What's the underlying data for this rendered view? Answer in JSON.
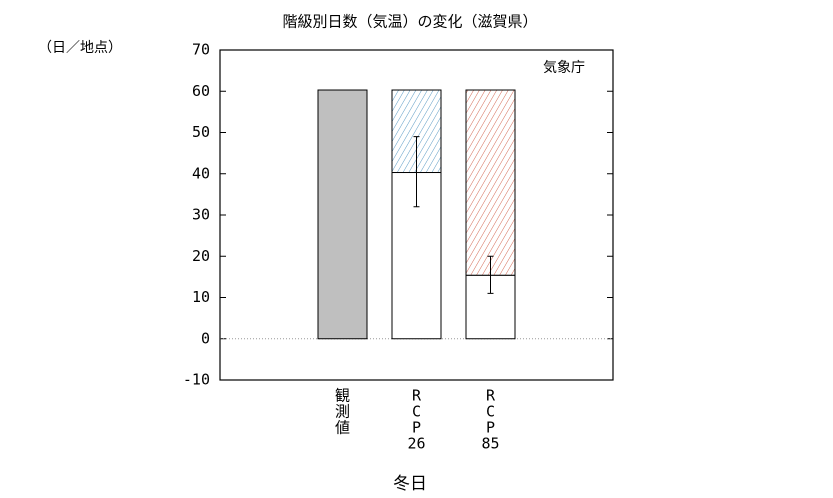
{
  "chart_data": {
    "type": "bar",
    "title": "階級別日数（気温）の変化（滋賀県）",
    "ylabel": "（日／地点）",
    "source": "気象庁",
    "xlabel": "冬日",
    "categories": [
      [
        "観",
        "測",
        "値"
      ],
      [
        "R",
        "C",
        "P",
        "26"
      ],
      [
        "R",
        "C",
        "P",
        "85"
      ]
    ],
    "series": [
      {
        "color": "#bfbfbf",
        "values": [
          60.3,
          null,
          null
        ]
      },
      {
        "color": "#ffffff",
        "values": [
          null,
          40.3,
          15.4
        ],
        "error_low": [
          null,
          32,
          11
        ],
        "error_high": [
          null,
          49,
          20
        ]
      },
      {
        "hatch": true,
        "colors": [
          null,
          "#5b9bc4",
          "#d46a55"
        ],
        "values": [
          null,
          20,
          44.9
        ]
      }
    ],
    "ylim": [
      -10,
      70
    ],
    "yticks": [
      -10,
      0,
      10,
      20,
      30,
      40,
      50,
      60,
      70
    ],
    "zero_line": true
  }
}
